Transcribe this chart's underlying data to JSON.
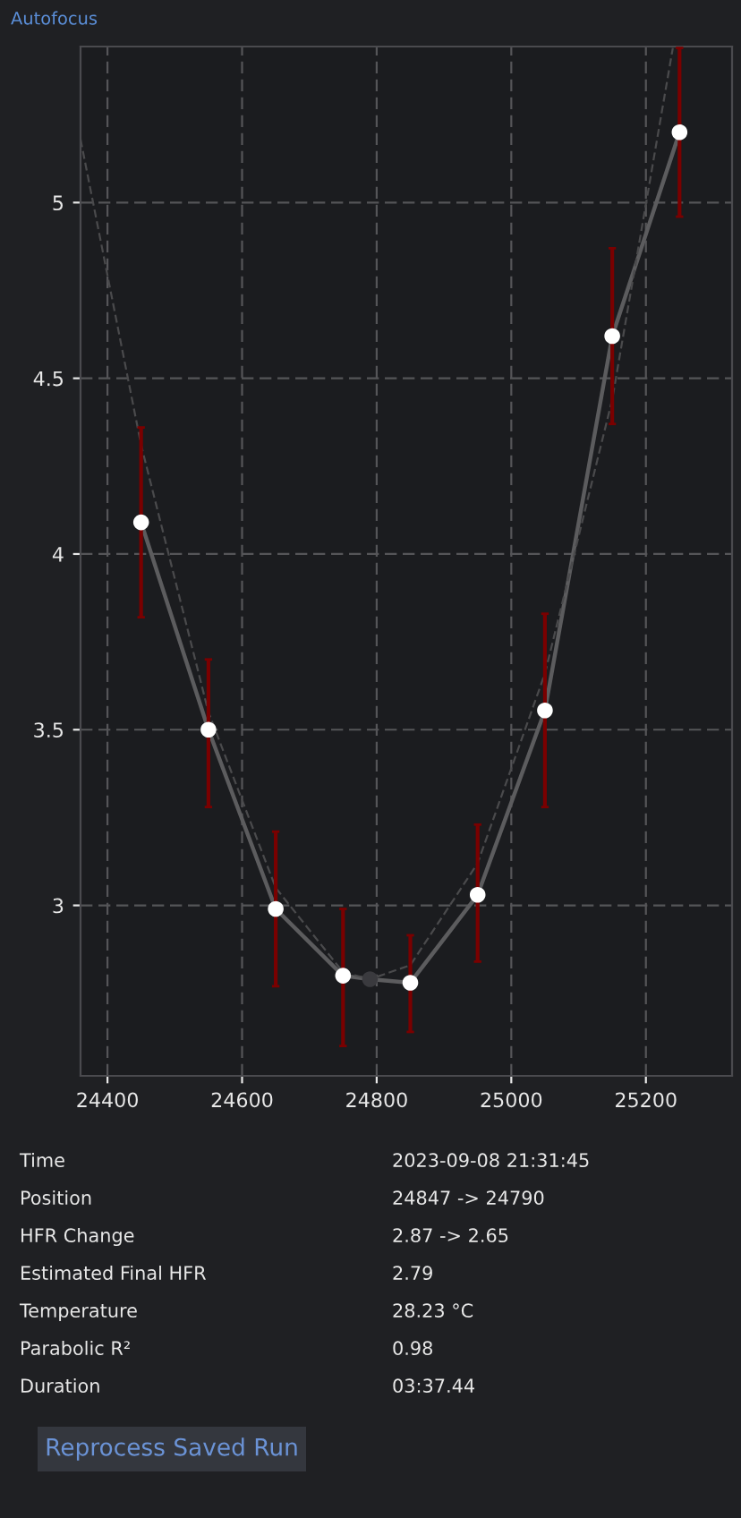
{
  "chart_data": {
    "type": "scatter",
    "title": "Autofocus",
    "x": [
      24450,
      24550,
      24650,
      24750,
      24850,
      24950,
      25050,
      25150,
      25250
    ],
    "series": [
      {
        "type": "line",
        "color": "#5c5c5e",
        "marker": "none",
        "line_style": "solid",
        "x": [
          24450,
          24550,
          24650,
          24750,
          24790,
          24850,
          24950,
          25050,
          25150,
          25250
        ],
        "values": [
          4.09,
          3.5,
          2.99,
          2.8,
          2.79,
          2.78,
          3.03,
          3.555,
          4.62,
          5.2
        ]
      },
      {
        "type": "line",
        "color": "#4a4a4c",
        "marker": "none",
        "line_style": "dashed",
        "x": [
          24360,
          24450,
          24550,
          24650,
          24750,
          24790,
          24850,
          24950,
          25050,
          25150,
          25240
        ],
        "values": [
          5.18,
          4.31,
          3.55,
          3.05,
          2.81,
          2.79,
          2.83,
          3.12,
          3.66,
          4.44,
          5.44
        ]
      },
      {
        "color": "#ffffff",
        "marker": "circle",
        "values": [
          4.09,
          3.5,
          2.99,
          2.8,
          2.78,
          3.03,
          3.555,
          4.62,
          5.2
        ],
        "errors": [
          [
            3.82,
            4.36
          ],
          [
            3.28,
            3.7
          ],
          [
            2.77,
            3.21
          ],
          [
            2.6,
            2.99
          ],
          [
            2.64,
            2.915
          ],
          [
            2.84,
            3.23
          ],
          [
            3.28,
            3.83
          ],
          [
            4.37,
            4.87
          ],
          [
            4.96,
            5.44
          ]
        ]
      },
      {
        "type": "scatter",
        "color": "#3a3a3e",
        "marker": "circle",
        "x": [
          24790
        ],
        "values": [
          2.79
        ]
      }
    ],
    "xlim": [
      24360,
      25328
    ],
    "xticks": [
      24400,
      24600,
      24800,
      25000,
      25200
    ],
    "ylim": [
      2.515,
      5.444
    ],
    "yticks": [
      3,
      3.5,
      4,
      4.5,
      5
    ],
    "grid": true,
    "legend": false,
    "annotations": [
      "Time",
      "2023-09-08 21:31:45",
      "Position",
      "24847 -> 24790",
      "HFR Change",
      "2.87 -> 2.65",
      "Estimated Final HFR",
      "2.79",
      "Temperature",
      "28.23 °C",
      "Parabolic R²",
      "0.98",
      "Duration",
      "03:37.44",
      "Reprocess Saved Run"
    ]
  }
}
